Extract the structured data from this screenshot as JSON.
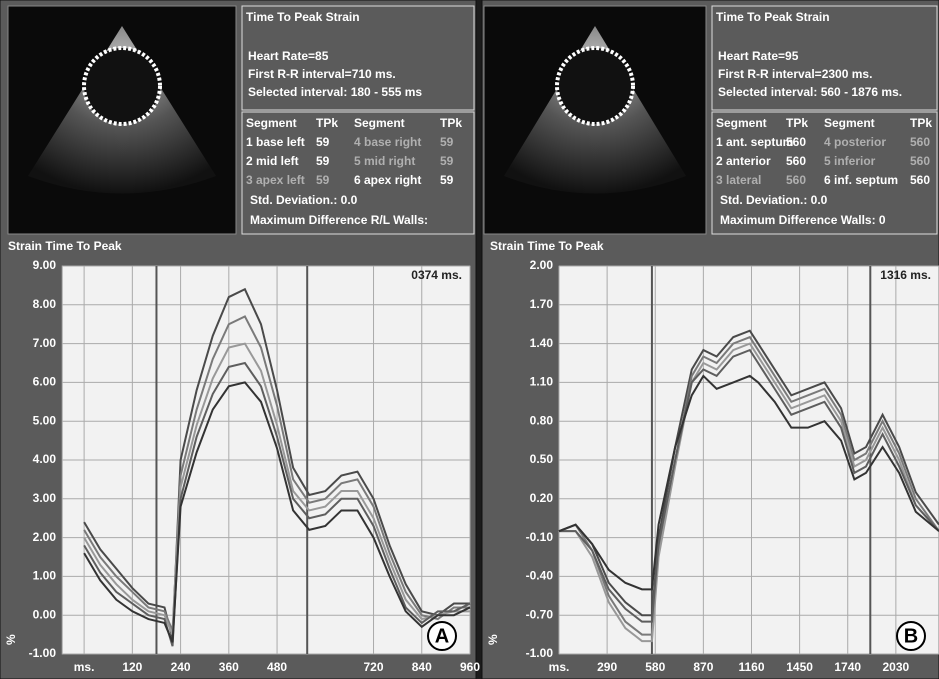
{
  "chart_data": [
    {
      "type": "line",
      "panel_label": "A",
      "title": "Strain  Time To Peak",
      "readout": "0374 ms.",
      "ylabel": "%",
      "info": {
        "title": "Time To Peak Strain",
        "lines": [
          "Heart Rate=85",
          "First R-R interval=710 ms.",
          "Selected interval: 180 - 555 ms"
        ]
      },
      "table": {
        "columns": [
          "Segment",
          "TPk",
          "Segment",
          "TPk"
        ],
        "rows": [
          [
            "1 base left",
            "59",
            "4 base right",
            "59"
          ],
          [
            "2 mid left",
            "59",
            "5 mid right",
            "59"
          ],
          [
            "3 apex left",
            "59",
            "6 apex right",
            "59"
          ]
        ]
      },
      "notes": [
        "Std. Deviation.: 0.0",
        "Maximum Difference R/L Walls:"
      ],
      "x": [
        0,
        40,
        80,
        120,
        160,
        200,
        220,
        240,
        280,
        320,
        360,
        400,
        440,
        480,
        520,
        560,
        600,
        640,
        680,
        720,
        760,
        800,
        840,
        880,
        920,
        960
      ],
      "series": [
        {
          "color": "#4a4a4a",
          "values": [
            2.4,
            1.7,
            1.2,
            0.7,
            0.3,
            0.2,
            -0.6,
            4.0,
            5.8,
            7.2,
            8.2,
            8.4,
            7.5,
            5.8,
            3.8,
            3.1,
            3.2,
            3.6,
            3.7,
            3.0,
            1.8,
            0.8,
            0.1,
            0.0,
            0.3,
            0.3
          ]
        },
        {
          "color": "#7a7a7a",
          "values": [
            2.2,
            1.5,
            1.0,
            0.6,
            0.2,
            0.1,
            -0.4,
            3.6,
            5.3,
            6.6,
            7.5,
            7.7,
            6.9,
            5.4,
            3.5,
            2.9,
            3.0,
            3.4,
            3.5,
            2.8,
            1.6,
            0.6,
            0.0,
            -0.1,
            0.2,
            0.2
          ]
        },
        {
          "color": "#999999",
          "values": [
            2.0,
            1.3,
            0.8,
            0.4,
            0.1,
            0.0,
            -0.5,
            3.3,
            4.9,
            6.1,
            6.9,
            7.0,
            6.3,
            4.9,
            3.2,
            2.7,
            2.8,
            3.2,
            3.2,
            2.5,
            1.4,
            0.4,
            -0.1,
            0.0,
            0.1,
            0.1
          ]
        },
        {
          "color": "#5e5e5e",
          "values": [
            1.8,
            1.1,
            0.6,
            0.3,
            0.0,
            -0.1,
            -0.8,
            3.0,
            4.6,
            5.7,
            6.4,
            6.5,
            5.9,
            4.6,
            3.0,
            2.5,
            2.6,
            3.0,
            3.0,
            2.3,
            1.2,
            0.2,
            -0.2,
            0.1,
            0.1,
            0.3
          ]
        },
        {
          "color": "#333333",
          "values": [
            1.6,
            0.9,
            0.4,
            0.1,
            -0.1,
            -0.2,
            -0.7,
            2.8,
            4.2,
            5.3,
            5.9,
            6.0,
            5.5,
            4.3,
            2.7,
            2.2,
            2.3,
            2.7,
            2.7,
            2.0,
            1.0,
            0.1,
            -0.3,
            0.0,
            0.0,
            0.2
          ]
        }
      ],
      "cursors": [
        180,
        555
      ],
      "xlim": [
        -55,
        960
      ],
      "xticks": [
        {
          "value": 0,
          "label": "ms."
        },
        120,
        240,
        360,
        480,
        720,
        840,
        960
      ],
      "ylim": [
        -1,
        9
      ],
      "yticks": [
        {
          "value": 9,
          "label": "9.00"
        },
        {
          "value": 8,
          "label": "8.00"
        },
        {
          "value": 7,
          "label": "7.00"
        },
        {
          "value": 6,
          "label": "6.00"
        },
        {
          "value": 5,
          "label": "5.00"
        },
        {
          "value": 4,
          "label": "4.00"
        },
        {
          "value": 3,
          "label": "3.00"
        },
        {
          "value": 2,
          "label": "2.00"
        },
        {
          "value": 1,
          "label": "1.00"
        },
        {
          "value": 0,
          "label": "0.00"
        },
        {
          "value": -1,
          "label": "-1.00"
        }
      ],
      "grid": true
    },
    {
      "type": "line",
      "panel_label": "B",
      "title": "Strain  Time To Peak",
      "readout": "1316 ms.",
      "ylabel": "%",
      "info": {
        "title": "Time To Peak Strain",
        "lines": [
          "Heart Rate=95",
          "First R-R interval=2300 ms.",
          "Selected interval: 560 - 1876 ms."
        ]
      },
      "table": {
        "columns": [
          "Segment",
          "TPk",
          "Segment",
          "TPk"
        ],
        "rows": [
          [
            "1 ant. septum",
            "560",
            "4 posterior",
            "560"
          ],
          [
            "2 anterior",
            "560",
            "5 inferior",
            "560"
          ],
          [
            "3 lateral",
            "560",
            "6 inf. septum",
            "560"
          ]
        ]
      },
      "notes": [
        "Std. Deviation.: 0.0",
        "Maximum Difference  Walls: 0"
      ],
      "x": [
        0,
        100,
        200,
        300,
        400,
        500,
        560,
        600,
        700,
        800,
        870,
        950,
        1050,
        1150,
        1200,
        1300,
        1400,
        1500,
        1600,
        1700,
        1780,
        1850,
        1950,
        2050,
        2150,
        2290
      ],
      "series": [
        {
          "color": "#4a4a4a",
          "values": [
            -0.05,
            0.0,
            -0.15,
            -0.45,
            -0.6,
            -0.7,
            -0.7,
            -0.1,
            0.6,
            1.2,
            1.35,
            1.3,
            1.45,
            1.5,
            1.4,
            1.2,
            1.0,
            1.05,
            1.1,
            0.9,
            0.55,
            0.6,
            0.85,
            0.6,
            0.25,
            0.0
          ]
        },
        {
          "color": "#7a7a7a",
          "values": [
            -0.05,
            0.0,
            -0.2,
            -0.55,
            -0.75,
            -0.85,
            -0.85,
            -0.2,
            0.5,
            1.15,
            1.3,
            1.25,
            1.4,
            1.45,
            1.35,
            1.15,
            0.95,
            1.0,
            1.05,
            0.85,
            0.5,
            0.55,
            0.8,
            0.55,
            0.2,
            -0.05
          ]
        },
        {
          "color": "#999999",
          "values": [
            -0.05,
            -0.05,
            -0.25,
            -0.6,
            -0.8,
            -0.9,
            -0.9,
            -0.25,
            0.45,
            1.1,
            1.25,
            1.2,
            1.35,
            1.4,
            1.3,
            1.1,
            0.9,
            0.95,
            1.0,
            0.8,
            0.45,
            0.5,
            0.75,
            0.5,
            0.15,
            -0.05
          ]
        },
        {
          "color": "#5e5e5e",
          "values": [
            -0.05,
            -0.05,
            -0.2,
            -0.5,
            -0.65,
            -0.75,
            -0.75,
            -0.15,
            0.5,
            1.1,
            1.2,
            1.15,
            1.3,
            1.35,
            1.25,
            1.05,
            0.85,
            0.9,
            0.95,
            0.75,
            0.4,
            0.45,
            0.7,
            0.45,
            0.15,
            -0.05
          ]
        },
        {
          "color": "#333333",
          "values": [
            -0.05,
            0.0,
            -0.15,
            -0.35,
            -0.45,
            -0.5,
            -0.5,
            0.0,
            0.6,
            1.0,
            1.15,
            1.05,
            1.1,
            1.15,
            1.1,
            0.95,
            0.75,
            0.75,
            0.8,
            0.65,
            0.35,
            0.4,
            0.6,
            0.4,
            0.1,
            -0.05
          ]
        }
      ],
      "cursors": [
        560,
        1876
      ],
      "xlim": [
        0,
        2290
      ],
      "xticks": [
        {
          "value": 0,
          "label": "ms."
        },
        290,
        580,
        870,
        1160,
        1450,
        1740,
        2030
      ],
      "ylim": [
        -1,
        2
      ],
      "yticks": [
        {
          "value": 2,
          "label": "2.00"
        },
        {
          "value": 1.7,
          "label": "1.70"
        },
        {
          "value": 1.4,
          "label": "1.40"
        },
        {
          "value": 1.1,
          "label": "1.10"
        },
        {
          "value": 0.8,
          "label": "0.80"
        },
        {
          "value": 0.5,
          "label": "0.50"
        },
        {
          "value": 0.2,
          "label": "0.20"
        },
        {
          "value": -0.1,
          "label": "-0.10"
        },
        {
          "value": -0.4,
          "label": "-0.40"
        },
        {
          "value": -0.7,
          "label": "-0.70"
        },
        {
          "value": -1,
          "label": "-1.00"
        }
      ],
      "grid": true
    }
  ]
}
